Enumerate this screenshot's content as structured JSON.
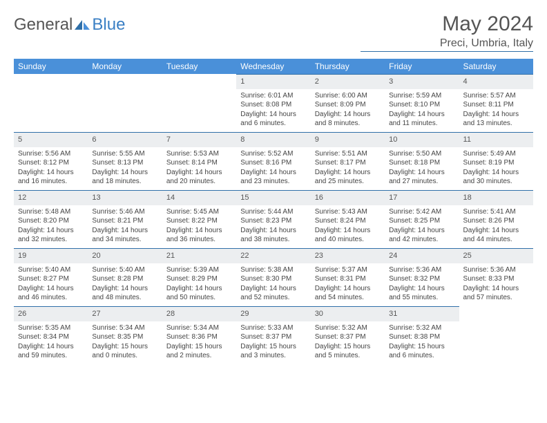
{
  "brand": {
    "part1": "General",
    "part2": "Blue"
  },
  "title": "May 2024",
  "location": "Preci, Umbria, Italy",
  "colors": {
    "header_bg": "#4a90d9",
    "header_border": "#2f6fa8",
    "daynum_bg": "#eceef0",
    "text": "#444",
    "brand_blue": "#3a7fc4"
  },
  "weekdays": [
    "Sunday",
    "Monday",
    "Tuesday",
    "Wednesday",
    "Thursday",
    "Friday",
    "Saturday"
  ],
  "weeks": [
    [
      {
        "n": "",
        "sr": "",
        "ss": "",
        "dl": ""
      },
      {
        "n": "",
        "sr": "",
        "ss": "",
        "dl": ""
      },
      {
        "n": "",
        "sr": "",
        "ss": "",
        "dl": ""
      },
      {
        "n": "1",
        "sr": "Sunrise: 6:01 AM",
        "ss": "Sunset: 8:08 PM",
        "dl": "Daylight: 14 hours and 6 minutes."
      },
      {
        "n": "2",
        "sr": "Sunrise: 6:00 AM",
        "ss": "Sunset: 8:09 PM",
        "dl": "Daylight: 14 hours and 8 minutes."
      },
      {
        "n": "3",
        "sr": "Sunrise: 5:59 AM",
        "ss": "Sunset: 8:10 PM",
        "dl": "Daylight: 14 hours and 11 minutes."
      },
      {
        "n": "4",
        "sr": "Sunrise: 5:57 AM",
        "ss": "Sunset: 8:11 PM",
        "dl": "Daylight: 14 hours and 13 minutes."
      }
    ],
    [
      {
        "n": "5",
        "sr": "Sunrise: 5:56 AM",
        "ss": "Sunset: 8:12 PM",
        "dl": "Daylight: 14 hours and 16 minutes."
      },
      {
        "n": "6",
        "sr": "Sunrise: 5:55 AM",
        "ss": "Sunset: 8:13 PM",
        "dl": "Daylight: 14 hours and 18 minutes."
      },
      {
        "n": "7",
        "sr": "Sunrise: 5:53 AM",
        "ss": "Sunset: 8:14 PM",
        "dl": "Daylight: 14 hours and 20 minutes."
      },
      {
        "n": "8",
        "sr": "Sunrise: 5:52 AM",
        "ss": "Sunset: 8:16 PM",
        "dl": "Daylight: 14 hours and 23 minutes."
      },
      {
        "n": "9",
        "sr": "Sunrise: 5:51 AM",
        "ss": "Sunset: 8:17 PM",
        "dl": "Daylight: 14 hours and 25 minutes."
      },
      {
        "n": "10",
        "sr": "Sunrise: 5:50 AM",
        "ss": "Sunset: 8:18 PM",
        "dl": "Daylight: 14 hours and 27 minutes."
      },
      {
        "n": "11",
        "sr": "Sunrise: 5:49 AM",
        "ss": "Sunset: 8:19 PM",
        "dl": "Daylight: 14 hours and 30 minutes."
      }
    ],
    [
      {
        "n": "12",
        "sr": "Sunrise: 5:48 AM",
        "ss": "Sunset: 8:20 PM",
        "dl": "Daylight: 14 hours and 32 minutes."
      },
      {
        "n": "13",
        "sr": "Sunrise: 5:46 AM",
        "ss": "Sunset: 8:21 PM",
        "dl": "Daylight: 14 hours and 34 minutes."
      },
      {
        "n": "14",
        "sr": "Sunrise: 5:45 AM",
        "ss": "Sunset: 8:22 PM",
        "dl": "Daylight: 14 hours and 36 minutes."
      },
      {
        "n": "15",
        "sr": "Sunrise: 5:44 AM",
        "ss": "Sunset: 8:23 PM",
        "dl": "Daylight: 14 hours and 38 minutes."
      },
      {
        "n": "16",
        "sr": "Sunrise: 5:43 AM",
        "ss": "Sunset: 8:24 PM",
        "dl": "Daylight: 14 hours and 40 minutes."
      },
      {
        "n": "17",
        "sr": "Sunrise: 5:42 AM",
        "ss": "Sunset: 8:25 PM",
        "dl": "Daylight: 14 hours and 42 minutes."
      },
      {
        "n": "18",
        "sr": "Sunrise: 5:41 AM",
        "ss": "Sunset: 8:26 PM",
        "dl": "Daylight: 14 hours and 44 minutes."
      }
    ],
    [
      {
        "n": "19",
        "sr": "Sunrise: 5:40 AM",
        "ss": "Sunset: 8:27 PM",
        "dl": "Daylight: 14 hours and 46 minutes."
      },
      {
        "n": "20",
        "sr": "Sunrise: 5:40 AM",
        "ss": "Sunset: 8:28 PM",
        "dl": "Daylight: 14 hours and 48 minutes."
      },
      {
        "n": "21",
        "sr": "Sunrise: 5:39 AM",
        "ss": "Sunset: 8:29 PM",
        "dl": "Daylight: 14 hours and 50 minutes."
      },
      {
        "n": "22",
        "sr": "Sunrise: 5:38 AM",
        "ss": "Sunset: 8:30 PM",
        "dl": "Daylight: 14 hours and 52 minutes."
      },
      {
        "n": "23",
        "sr": "Sunrise: 5:37 AM",
        "ss": "Sunset: 8:31 PM",
        "dl": "Daylight: 14 hours and 54 minutes."
      },
      {
        "n": "24",
        "sr": "Sunrise: 5:36 AM",
        "ss": "Sunset: 8:32 PM",
        "dl": "Daylight: 14 hours and 55 minutes."
      },
      {
        "n": "25",
        "sr": "Sunrise: 5:36 AM",
        "ss": "Sunset: 8:33 PM",
        "dl": "Daylight: 14 hours and 57 minutes."
      }
    ],
    [
      {
        "n": "26",
        "sr": "Sunrise: 5:35 AM",
        "ss": "Sunset: 8:34 PM",
        "dl": "Daylight: 14 hours and 59 minutes."
      },
      {
        "n": "27",
        "sr": "Sunrise: 5:34 AM",
        "ss": "Sunset: 8:35 PM",
        "dl": "Daylight: 15 hours and 0 minutes."
      },
      {
        "n": "28",
        "sr": "Sunrise: 5:34 AM",
        "ss": "Sunset: 8:36 PM",
        "dl": "Daylight: 15 hours and 2 minutes."
      },
      {
        "n": "29",
        "sr": "Sunrise: 5:33 AM",
        "ss": "Sunset: 8:37 PM",
        "dl": "Daylight: 15 hours and 3 minutes."
      },
      {
        "n": "30",
        "sr": "Sunrise: 5:32 AM",
        "ss": "Sunset: 8:37 PM",
        "dl": "Daylight: 15 hours and 5 minutes."
      },
      {
        "n": "31",
        "sr": "Sunrise: 5:32 AM",
        "ss": "Sunset: 8:38 PM",
        "dl": "Daylight: 15 hours and 6 minutes."
      },
      {
        "n": "",
        "sr": "",
        "ss": "",
        "dl": ""
      }
    ]
  ]
}
